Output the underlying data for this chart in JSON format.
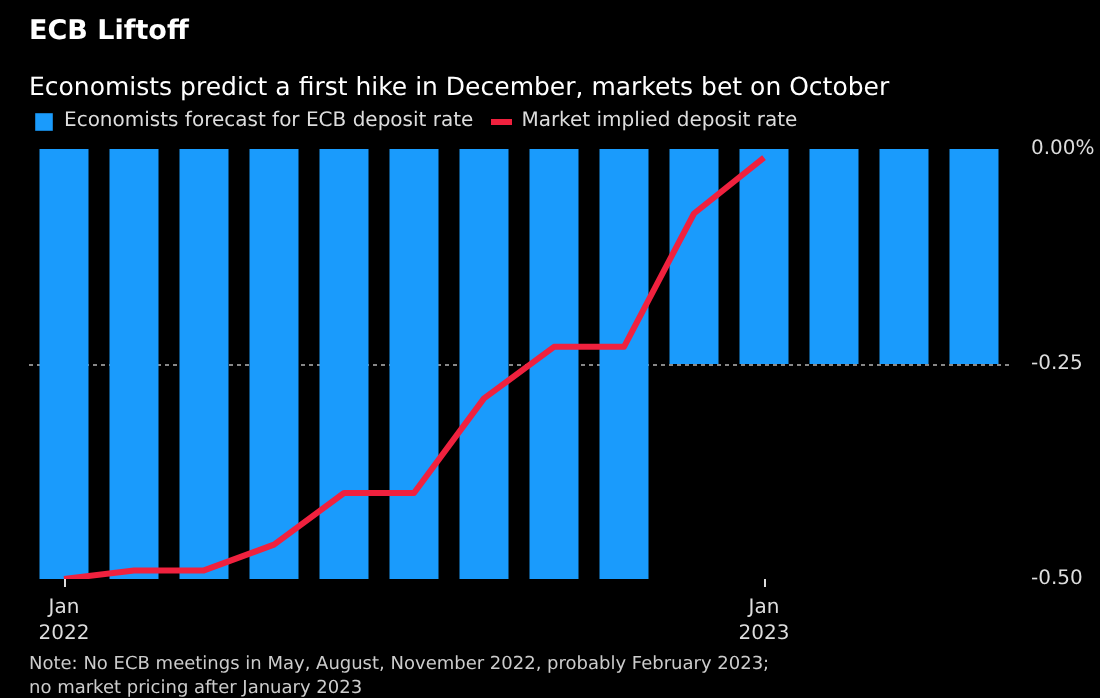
{
  "chart_data": {
    "type": "bar",
    "title": "ECB Liftoff",
    "subtitle": "Economists predict a first hike in December, markets bet on October",
    "categories": [
      "Jan\n2022",
      null,
      null,
      null,
      null,
      null,
      null,
      null,
      null,
      null,
      "Jan\n2023",
      null,
      null,
      null
    ],
    "series": [
      {
        "name": "Economists forecast for ECB deposit rate",
        "color": "#1a9bfc",
        "values": [
          -0.5,
          -0.5,
          -0.5,
          -0.5,
          -0.5,
          -0.5,
          -0.5,
          -0.5,
          -0.5,
          -0.25,
          -0.25,
          -0.25,
          -0.25,
          -0.25
        ]
      },
      {
        "name": "Market implied deposit rate",
        "type": "line",
        "color": "#f0213e",
        "values": [
          -0.5,
          -0.49,
          -0.49,
          -0.46,
          -0.4,
          -0.4,
          -0.29,
          -0.23,
          -0.23,
          -0.075,
          -0.01,
          null,
          null,
          null
        ]
      }
    ],
    "ylim": [
      -0.5,
      0
    ],
    "yticks": [
      {
        "value": 0,
        "label": "0.00%"
      },
      {
        "value": -0.25,
        "label": "-0.25"
      },
      {
        "value": -0.5,
        "label": "-0.50"
      }
    ],
    "grid": "y",
    "legend": "top left",
    "annotations": [
      "Note: No ECB meetings in May, August, November 2022, probably February 2023;\nno market pricing after January 2023"
    ]
  }
}
